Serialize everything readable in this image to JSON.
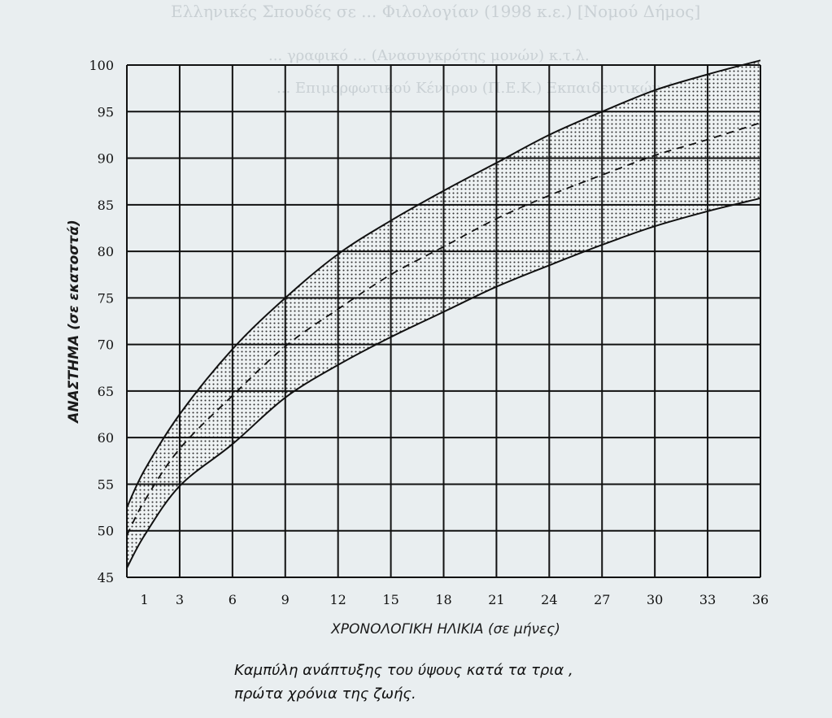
{
  "background_text": {
    "line1": "Ελληνικές Σπουδές σε ... Φιλολογίαν (1998 κ.ε.) [Νομού Δήμος]",
    "line2": "... γραφικό ... (Ανασυγκρότης μονών) κ.τ.λ.",
    "line3": "... Επιμορφωτικού Κέντρου (Π.Ε.Κ.) Εκπαιδευτικών Αθηνών"
  },
  "caption": {
    "line1": "Καμπύλη ανάπτυξης του ύψους κατά τα τρια   ,",
    "line2": "πρώτα χρόνια της ζωής."
  },
  "colors": {
    "background": "#e9eef0",
    "ink": "#111111",
    "band_dots": "#333333"
  },
  "chart_data": {
    "type": "area",
    "title": "",
    "xlabel": "ΧΡΟΝΟΛΟΓΙΚΗ ΗΛΙΚΙΑ (σε μήνες)",
    "ylabel": "ΑΝΑΣΤΗΜΑ (σε εκατοστά)",
    "xlim": [
      0,
      36
    ],
    "ylim": [
      45,
      100
    ],
    "x_ticks": [
      1,
      3,
      6,
      9,
      12,
      15,
      18,
      21,
      24,
      27,
      30,
      33,
      36
    ],
    "y_ticks": [
      45,
      50,
      55,
      60,
      65,
      70,
      75,
      80,
      85,
      90,
      95,
      100
    ],
    "grid": true,
    "x_gridlines": [
      0,
      3,
      6,
      9,
      12,
      15,
      18,
      21,
      24,
      27,
      30,
      33,
      36
    ],
    "y_gridlines": [
      45,
      50,
      55,
      60,
      65,
      70,
      75,
      80,
      85,
      90,
      95,
      100
    ],
    "x": [
      0,
      1,
      3,
      6,
      9,
      12,
      15,
      18,
      21,
      24,
      27,
      30,
      33,
      36
    ],
    "series": [
      {
        "name": "",
        "style": "solid",
        "role": "upper",
        "values": [
          52.5,
          56.5,
          62.5,
          69.5,
          75,
          79.7,
          83.3,
          86.5,
          89.5,
          92.5,
          95,
          97.3,
          99,
          100.5
        ]
      },
      {
        "name": "",
        "style": "dashed",
        "role": "median",
        "values": [
          49.5,
          53.2,
          58.8,
          64.5,
          69.8,
          73.8,
          77.5,
          80.5,
          83.5,
          86,
          88.2,
          90.3,
          92,
          93.8
        ]
      },
      {
        "name": "",
        "style": "solid",
        "role": "lower",
        "values": [
          46,
          49.5,
          54.8,
          59.3,
          64.3,
          67.8,
          70.8,
          73.5,
          76.2,
          78.5,
          80.7,
          82.7,
          84.3,
          85.7
        ]
      }
    ],
    "shaded_band": "between upper and lower"
  }
}
